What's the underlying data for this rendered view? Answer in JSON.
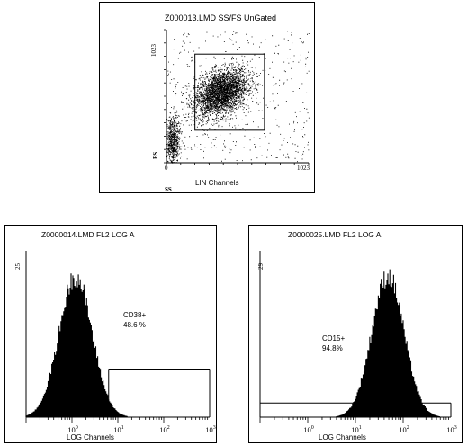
{
  "chart_data": [
    {
      "type": "scatter",
      "title": "Z000013.LMD SS/FS UnGated",
      "xlabel": "LIN Channels",
      "ylabel": "FS",
      "x_axis_corner_label": "SS",
      "xlim": [
        0,
        1023
      ],
      "ylim": [
        0,
        1023
      ],
      "x_tick_labels": [
        "0",
        "1023"
      ],
      "y_tick_labels": [
        "0",
        "1023"
      ],
      "gate": {
        "x": [
          205,
          705
        ],
        "y": [
          250,
          835
        ]
      },
      "clusters": [
        {
          "name": "main",
          "center_x": 390,
          "center_y": 540,
          "spread_x": 95,
          "spread_y": 85,
          "count": 3200
        },
        {
          "name": "low",
          "center_x": 45,
          "center_y": 170,
          "spread_x": 25,
          "spread_y": 95,
          "count": 650
        }
      ],
      "background_events": 420
    },
    {
      "type": "histogram",
      "title": "Z0000014.LMD FL2 LOG A",
      "xlabel": "LOG Channels",
      "x_scale": "log",
      "xlim": [
        0.1,
        1000
      ],
      "x_tick_labels": [
        "10^0",
        "10^1",
        "10^2",
        "10^3"
      ],
      "y_tick_label": "25",
      "ylim": [
        0,
        25
      ],
      "peak_center": 1.2,
      "peak_height": 24,
      "peak_width_decades": 0.36,
      "gate": {
        "label": "CD38+",
        "percent": "48.6 %",
        "x_start": 6.3,
        "x_end": 1000,
        "bar_level": 7.5
      }
    },
    {
      "type": "histogram",
      "title": "Z0000025.LMD FL2 LOG A",
      "xlabel": "LOG Channels",
      "x_scale": "log",
      "xlim": [
        0.1,
        1000
      ],
      "x_tick_labels": [
        "10^0",
        "10^1",
        "10^2",
        "10^3"
      ],
      "y_tick_label": "29",
      "ylim": [
        0,
        29
      ],
      "peak_center": 48,
      "peak_height": 28,
      "peak_width_decades": 0.34,
      "gate": {
        "label": "CD15+",
        "percent": "94.8%",
        "x_start": 0.1,
        "x_end": 1000,
        "bar_level": 2.6
      }
    }
  ]
}
